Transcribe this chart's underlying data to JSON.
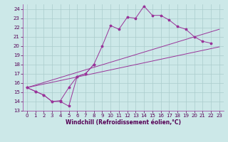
{
  "xlabel": "Windchill (Refroidissement éolien,°C)",
  "xlim": [
    -0.5,
    23.5
  ],
  "ylim": [
    13,
    24.5
  ],
  "yticks": [
    13,
    14,
    15,
    16,
    17,
    18,
    19,
    20,
    21,
    22,
    23,
    24
  ],
  "xticks": [
    0,
    1,
    2,
    3,
    4,
    5,
    6,
    7,
    8,
    9,
    10,
    11,
    12,
    13,
    14,
    15,
    16,
    17,
    18,
    19,
    20,
    21,
    22,
    23
  ],
  "line_color": "#993399",
  "bg_color": "#cce8e8",
  "grid_color": "#aacccc",
  "line1_x": [
    0,
    1,
    2,
    3,
    4,
    5,
    6,
    7,
    8,
    9,
    10,
    11,
    12,
    13,
    14,
    15,
    16,
    17,
    18,
    19,
    20,
    21,
    22
  ],
  "line1_y": [
    15.5,
    15.1,
    14.7,
    14.0,
    14.0,
    13.5,
    16.7,
    17.0,
    18.0,
    20.0,
    22.2,
    21.8,
    23.1,
    23.0,
    24.3,
    23.3,
    23.3,
    22.8,
    22.1,
    21.8,
    21.0,
    20.5,
    20.3
  ],
  "line2_x": [
    0,
    1,
    2,
    3,
    4,
    5,
    6,
    7,
    8
  ],
  "line2_y": [
    15.5,
    15.1,
    14.7,
    14.0,
    14.1,
    15.5,
    16.7,
    17.0,
    18.0
  ],
  "line3_x": [
    0,
    23
  ],
  "line3_y": [
    15.5,
    19.9
  ],
  "line4_x": [
    0,
    23
  ],
  "line4_y": [
    15.5,
    21.8
  ],
  "tick_fontsize": 5,
  "xlabel_fontsize": 5.5
}
